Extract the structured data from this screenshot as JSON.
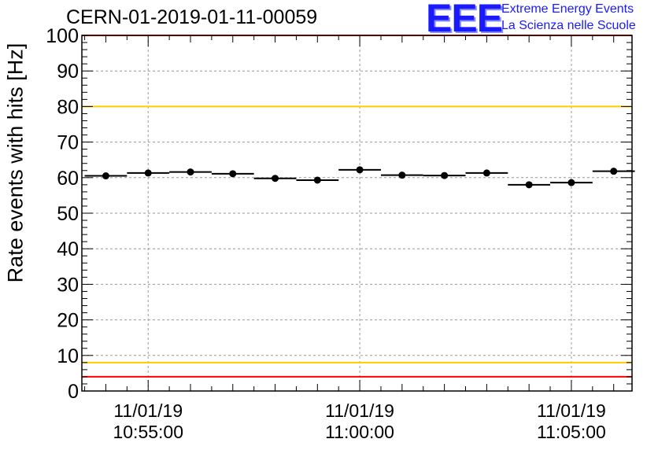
{
  "header": {
    "run_id": "CERN-01-2019-01-11-00059"
  },
  "logo": {
    "mark": "EEE",
    "line1": "Extreme Energy Events",
    "line2": "La Scienza nelle Scuole"
  },
  "colors": {
    "limit_red": "#ff0000",
    "limit_yellow": "#ffcc00",
    "logo_blue": "#1a1aff",
    "grid": "#999999"
  },
  "chart_data": {
    "type": "scatter",
    "ylabel": "Rate events with hits [Hz]",
    "xlabel": "",
    "ylim": [
      0,
      100
    ],
    "yticks": [
      0,
      10,
      20,
      30,
      40,
      50,
      60,
      70,
      80,
      90,
      100
    ],
    "grid": true,
    "x_time_range": [
      "10:53:26",
      "11:06:26"
    ],
    "xticks": [
      {
        "time": "10:55:00",
        "date_label": "11/01/19",
        "time_label": "10:55:00"
      },
      {
        "time": "11:00:00",
        "date_label": "11/01/19",
        "time_label": "11:00:00"
      },
      {
        "time": "11:05:00",
        "date_label": "11/01/19",
        "time_label": "11:05:00"
      }
    ],
    "bins": [
      {
        "start": "10:53:30",
        "end": "10:54:30",
        "center": "10:54:00",
        "rate": 60.5
      },
      {
        "start": "10:54:30",
        "end": "10:55:30",
        "center": "10:55:00",
        "rate": 61.3
      },
      {
        "start": "10:55:30",
        "end": "10:56:30",
        "center": "10:56:00",
        "rate": 61.6
      },
      {
        "start": "10:56:30",
        "end": "10:57:30",
        "center": "10:57:00",
        "rate": 61.1
      },
      {
        "start": "10:57:30",
        "end": "10:58:30",
        "center": "10:58:00",
        "rate": 59.8
      },
      {
        "start": "10:58:30",
        "end": "10:59:30",
        "center": "10:59:00",
        "rate": 59.3
      },
      {
        "start": "10:59:30",
        "end": "11:00:30",
        "center": "11:00:00",
        "rate": 62.2
      },
      {
        "start": "11:00:30",
        "end": "11:01:30",
        "center": "11:01:00",
        "rate": 60.7
      },
      {
        "start": "11:01:30",
        "end": "11:02:30",
        "center": "11:02:00",
        "rate": 60.6
      },
      {
        "start": "11:02:30",
        "end": "11:03:30",
        "center": "11:03:00",
        "rate": 61.3
      },
      {
        "start": "11:03:30",
        "end": "11:04:30",
        "center": "11:04:00",
        "rate": 58.0
      },
      {
        "start": "11:04:30",
        "end": "11:05:30",
        "center": "11:05:00",
        "rate": 58.6
      },
      {
        "start": "11:05:30",
        "end": "11:06:30",
        "center": "11:06:00",
        "rate": 61.8
      }
    ],
    "reference_lines": [
      {
        "y": 100,
        "color": "red"
      },
      {
        "y": 80,
        "color": "yellow"
      },
      {
        "y": 8,
        "color": "yellow"
      },
      {
        "y": 4,
        "color": "red"
      }
    ]
  }
}
